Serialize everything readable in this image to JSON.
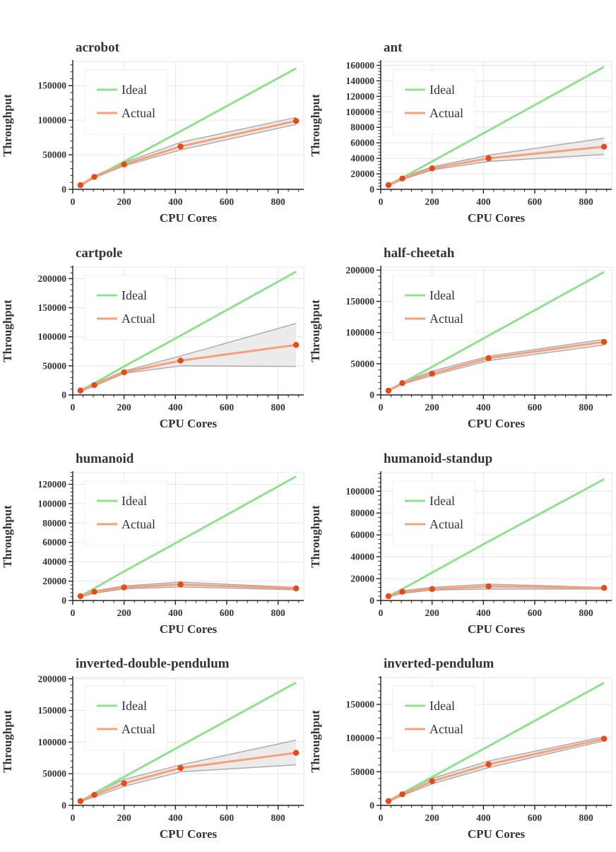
{
  "figure": {
    "x_label": "CPU Cores",
    "y_label": "Throughput",
    "legend": {
      "ideal": "Ideal",
      "actual": "Actual",
      "placement": "upper-left"
    }
  },
  "colors": {
    "ideal": "#90e090",
    "actual": "#f5a07a",
    "points": "#e64a19",
    "band_fill": "#ebebeb",
    "band_edge": "#a8a8a8",
    "grid": "#e6e6e6",
    "axis": "#222222",
    "text": "#333333"
  },
  "chart_data": [
    {
      "type": "line",
      "title": "acrobot",
      "xlabel": "CPU Cores",
      "ylabel": "Throughput",
      "xlim": [
        0,
        900
      ],
      "ylim": [
        0,
        185000
      ],
      "xticks": [
        0,
        200,
        400,
        600,
        800
      ],
      "yticks": [
        0,
        50000,
        100000,
        150000
      ],
      "x": [
        30,
        84,
        200,
        420,
        870
      ],
      "series": [
        {
          "name": "Ideal",
          "values": [
            6000,
            17000,
            40000,
            84000,
            175000
          ]
        },
        {
          "name": "Actual",
          "values": [
            6000,
            18000,
            36000,
            62000,
            99000
          ]
        }
      ],
      "band": {
        "upper": [
          7000,
          19500,
          38500,
          68000,
          104000
        ],
        "lower": [
          5000,
          16500,
          34000,
          57000,
          94000
        ]
      }
    },
    {
      "type": "line",
      "title": "ant",
      "xlabel": "CPU Cores",
      "ylabel": "Throughput",
      "xlim": [
        0,
        900
      ],
      "ylim": [
        0,
        165000
      ],
      "xticks": [
        0,
        200,
        400,
        600,
        800
      ],
      "yticks": [
        0,
        20000,
        40000,
        60000,
        80000,
        100000,
        120000,
        140000,
        160000
      ],
      "x": [
        30,
        84,
        200,
        420,
        870
      ],
      "series": [
        {
          "name": "Ideal",
          "values": [
            5500,
            15000,
            36000,
            76000,
            158000
          ]
        },
        {
          "name": "Actual",
          "values": [
            5500,
            14000,
            27000,
            40000,
            55000
          ]
        }
      ],
      "band": {
        "upper": [
          6500,
          15500,
          29000,
          44000,
          66000
        ],
        "lower": [
          4500,
          12500,
          25000,
          36000,
          45000
        ]
      }
    },
    {
      "type": "line",
      "title": "cartpole",
      "xlabel": "CPU Cores",
      "ylabel": "Throughput",
      "xlim": [
        0,
        900
      ],
      "ylim": [
        0,
        220000
      ],
      "xticks": [
        0,
        200,
        400,
        600,
        800
      ],
      "yticks": [
        0,
        50000,
        100000,
        150000,
        200000
      ],
      "x": [
        30,
        84,
        200,
        420,
        870
      ],
      "series": [
        {
          "name": "Ideal",
          "values": [
            7500,
            20000,
            49000,
            102000,
            212000
          ]
        },
        {
          "name": "Actual",
          "values": [
            7500,
            17000,
            39000,
            59000,
            86000
          ]
        }
      ],
      "band": {
        "upper": [
          9000,
          19000,
          41000,
          67000,
          123000
        ],
        "lower": [
          6000,
          15000,
          37000,
          50000,
          49000
        ]
      }
    },
    {
      "type": "line",
      "title": "half-cheetah",
      "xlabel": "CPU Cores",
      "ylabel": "Throughput",
      "xlim": [
        0,
        900
      ],
      "ylim": [
        0,
        205000
      ],
      "xticks": [
        0,
        200,
        400,
        600,
        800
      ],
      "yticks": [
        0,
        50000,
        100000,
        150000,
        200000
      ],
      "x": [
        30,
        84,
        200,
        420,
        870
      ],
      "series": [
        {
          "name": "Ideal",
          "values": [
            6800,
            19000,
            45000,
            95000,
            197000
          ]
        },
        {
          "name": "Actual",
          "values": [
            6800,
            19000,
            34000,
            59000,
            85000
          ]
        }
      ],
      "band": {
        "upper": [
          7800,
          20000,
          38000,
          62000,
          89000
        ],
        "lower": [
          5800,
          17000,
          31000,
          55000,
          80000
        ]
      }
    },
    {
      "type": "line",
      "title": "humanoid",
      "xlabel": "CPU Cores",
      "ylabel": "Throughput",
      "xlim": [
        0,
        900
      ],
      "ylim": [
        0,
        132000
      ],
      "xticks": [
        0,
        200,
        400,
        600,
        800
      ],
      "yticks": [
        0,
        20000,
        40000,
        60000,
        80000,
        100000,
        120000
      ],
      "x": [
        30,
        84,
        200,
        420,
        870
      ],
      "series": [
        {
          "name": "Ideal",
          "values": [
            4500,
            12500,
            30000,
            62000,
            128000
          ]
        },
        {
          "name": "Actual",
          "values": [
            4500,
            9000,
            13500,
            16500,
            12500
          ]
        }
      ],
      "band": {
        "upper": [
          5000,
          10000,
          15000,
          19000,
          13500
        ],
        "lower": [
          3500,
          7500,
          12000,
          14000,
          11000
        ]
      }
    },
    {
      "type": "line",
      "title": "humanoid-standup",
      "xlabel": "CPU Cores",
      "ylabel": "Throughput",
      "xlim": [
        0,
        900
      ],
      "ylim": [
        0,
        117000
      ],
      "xticks": [
        0,
        200,
        400,
        600,
        800
      ],
      "yticks": [
        0,
        20000,
        40000,
        60000,
        80000,
        100000
      ],
      "x": [
        30,
        84,
        200,
        420,
        870
      ],
      "series": [
        {
          "name": "Ideal",
          "values": [
            3900,
            10500,
            25500,
            54000,
            111000
          ]
        },
        {
          "name": "Actual",
          "values": [
            3900,
            8000,
            10500,
            13000,
            11500
          ]
        }
      ],
      "band": {
        "upper": [
          4500,
          9000,
          12000,
          15000,
          12000
        ],
        "lower": [
          3300,
          6500,
          9500,
          10500,
          10500
        ]
      }
    },
    {
      "type": "line",
      "title": "inverted-double-pendulum",
      "xlabel": "CPU Cores",
      "ylabel": "Throughput",
      "xlim": [
        0,
        900
      ],
      "ylim": [
        0,
        202000
      ],
      "xticks": [
        0,
        200,
        400,
        600,
        800
      ],
      "yticks": [
        0,
        50000,
        100000,
        150000,
        200000
      ],
      "x": [
        30,
        84,
        200,
        420,
        870
      ],
      "series": [
        {
          "name": "Ideal",
          "values": [
            6700,
            19000,
            45000,
            94000,
            194000
          ]
        },
        {
          "name": "Actual",
          "values": [
            6700,
            16500,
            35000,
            59000,
            83000
          ]
        }
      ],
      "band": {
        "upper": [
          7700,
          19000,
          41000,
          64000,
          103000
        ],
        "lower": [
          5700,
          13500,
          30000,
          53000,
          64000
        ]
      }
    },
    {
      "type": "line",
      "title": "inverted-pendulum",
      "xlabel": "CPU Cores",
      "ylabel": "Throughput",
      "xlim": [
        0,
        900
      ],
      "ylim": [
        0,
        190000
      ],
      "xticks": [
        0,
        200,
        400,
        600,
        800
      ],
      "yticks": [
        0,
        50000,
        100000,
        150000
      ],
      "x": [
        30,
        84,
        200,
        420,
        870
      ],
      "series": [
        {
          "name": "Ideal",
          "values": [
            6300,
            18000,
            42000,
            88000,
            182000
          ]
        },
        {
          "name": "Actual",
          "values": [
            6300,
            16500,
            36000,
            61000,
            99000
          ]
        }
      ],
      "band": {
        "upper": [
          7300,
          18500,
          40000,
          66000,
          102000
        ],
        "lower": [
          5300,
          14500,
          32000,
          56000,
          96000
        ]
      }
    }
  ]
}
